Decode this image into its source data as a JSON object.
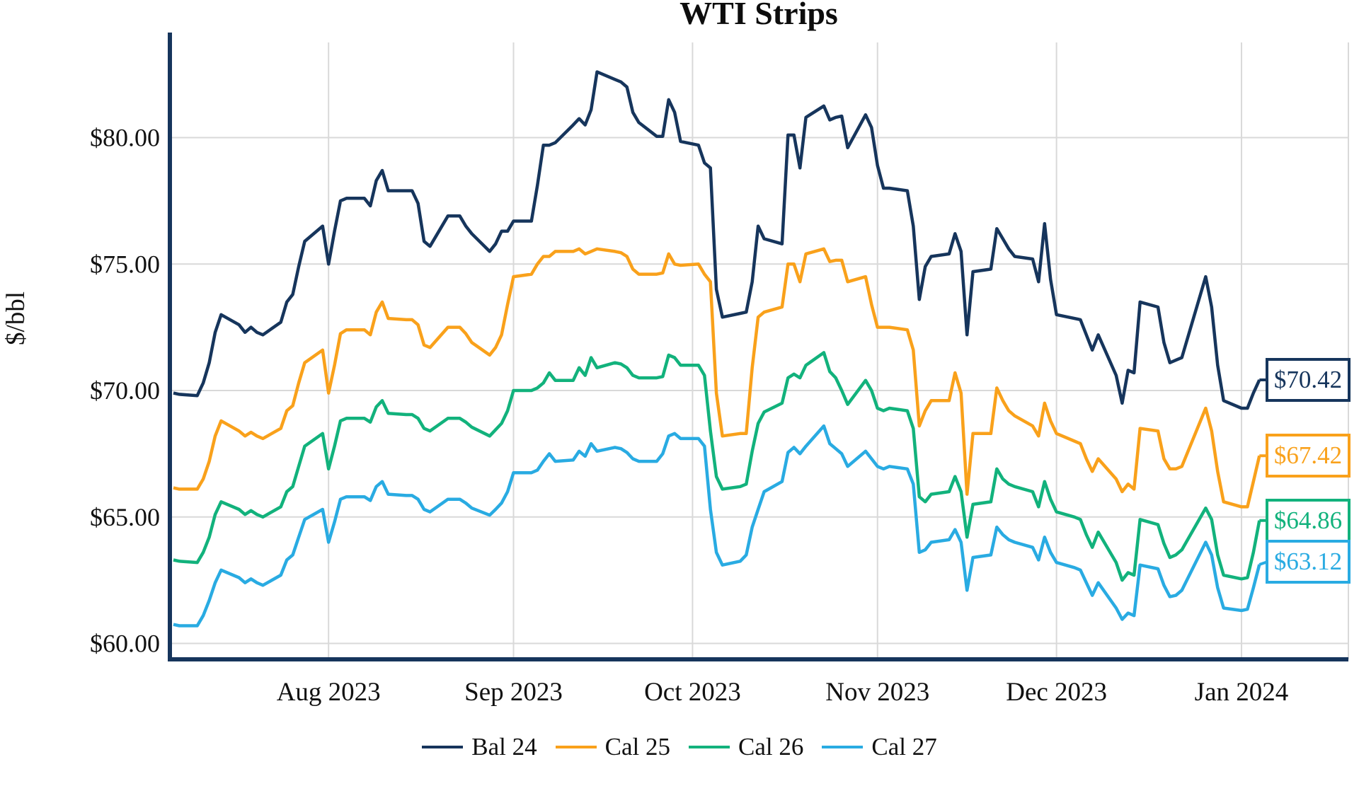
{
  "title": "WTI Strips",
  "colors": {
    "navy": "#16355C",
    "orange": "#F9A11B",
    "green": "#12B27C",
    "cyan": "#29ABE2",
    "axis_spine": "#16355C",
    "gridline": "#D9D9D9",
    "title_text": "#0D0D0D",
    "tick_text": "#111111"
  },
  "y_axis": {
    "label": "$/bbl",
    "ticks": [
      {
        "label": "$60.00",
        "value": 60
      },
      {
        "label": "$65.00",
        "value": 65
      },
      {
        "label": "$70.00",
        "value": 70
      },
      {
        "label": "$75.00",
        "value": 75
      },
      {
        "label": "$80.00",
        "value": 80
      }
    ]
  },
  "x_axis": {
    "ticks": [
      {
        "label": "Aug 2023",
        "date": "2023-08-01"
      },
      {
        "label": "Sep 2023",
        "date": "2023-09-01"
      },
      {
        "label": "Oct 2023",
        "date": "2023-10-01"
      },
      {
        "label": "Nov 2023",
        "date": "2023-11-01"
      },
      {
        "label": "Dec 2023",
        "date": "2023-12-01"
      },
      {
        "label": "Jan 2024",
        "date": "2024-01-01"
      }
    ]
  },
  "legend": [
    {
      "label": "Bal 24",
      "color_key": "navy"
    },
    {
      "label": "Cal 25",
      "color_key": "orange"
    },
    {
      "label": "Cal 26",
      "color_key": "green"
    },
    {
      "label": "Cal 27",
      "color_key": "cyan"
    }
  ],
  "end_labels": [
    {
      "text": "$70.42",
      "value": 70.42,
      "color_key": "navy"
    },
    {
      "text": "$67.42",
      "value": 67.42,
      "color_key": "orange"
    },
    {
      "text": "$64.86",
      "value": 64.86,
      "color_key": "green"
    },
    {
      "text": "$63.12",
      "value": 63.12,
      "color_key": "cyan"
    }
  ],
  "chart_data": {
    "type": "line",
    "title": "WTI Strips",
    "ylabel": "$/bbl",
    "ylim": [
      59.4,
      83.7
    ],
    "grid": true,
    "legend_position": "bottom",
    "x": [
      "2023-07-06",
      "2023-07-07",
      "2023-07-10",
      "2023-07-11",
      "2023-07-12",
      "2023-07-13",
      "2023-07-14",
      "2023-07-17",
      "2023-07-18",
      "2023-07-19",
      "2023-07-20",
      "2023-07-21",
      "2023-07-24",
      "2023-07-25",
      "2023-07-26",
      "2023-07-27",
      "2023-07-28",
      "2023-07-31",
      "2023-08-01",
      "2023-08-02",
      "2023-08-03",
      "2023-08-04",
      "2023-08-07",
      "2023-08-08",
      "2023-08-09",
      "2023-08-10",
      "2023-08-11",
      "2023-08-14",
      "2023-08-15",
      "2023-08-16",
      "2023-08-17",
      "2023-08-18",
      "2023-08-21",
      "2023-08-22",
      "2023-08-23",
      "2023-08-24",
      "2023-08-25",
      "2023-08-28",
      "2023-08-29",
      "2023-08-30",
      "2023-08-31",
      "2023-09-01",
      "2023-09-04",
      "2023-09-05",
      "2023-09-06",
      "2023-09-07",
      "2023-09-08",
      "2023-09-11",
      "2023-09-12",
      "2023-09-13",
      "2023-09-14",
      "2023-09-15",
      "2023-09-18",
      "2023-09-19",
      "2023-09-20",
      "2023-09-21",
      "2023-09-22",
      "2023-09-25",
      "2023-09-26",
      "2023-09-27",
      "2023-09-28",
      "2023-09-29",
      "2023-10-02",
      "2023-10-03",
      "2023-10-04",
      "2023-10-05",
      "2023-10-06",
      "2023-10-09",
      "2023-10-10",
      "2023-10-11",
      "2023-10-12",
      "2023-10-13",
      "2023-10-16",
      "2023-10-17",
      "2023-10-18",
      "2023-10-19",
      "2023-10-20",
      "2023-10-23",
      "2023-10-24",
      "2023-10-25",
      "2023-10-26",
      "2023-10-27",
      "2023-10-30",
      "2023-10-31",
      "2023-11-01",
      "2023-11-02",
      "2023-11-03",
      "2023-11-06",
      "2023-11-07",
      "2023-11-08",
      "2023-11-09",
      "2023-11-10",
      "2023-11-13",
      "2023-11-14",
      "2023-11-15",
      "2023-11-16",
      "2023-11-17",
      "2023-11-20",
      "2023-11-21",
      "2023-11-22",
      "2023-11-23",
      "2023-11-24",
      "2023-11-27",
      "2023-11-28",
      "2023-11-29",
      "2023-11-30",
      "2023-12-01",
      "2023-12-04",
      "2023-12-05",
      "2023-12-06",
      "2023-12-07",
      "2023-12-08",
      "2023-12-11",
      "2023-12-12",
      "2023-12-13",
      "2023-12-14",
      "2023-12-15",
      "2023-12-18",
      "2023-12-19",
      "2023-12-20",
      "2023-12-21",
      "2023-12-22",
      "2023-12-26",
      "2023-12-27",
      "2023-12-28",
      "2023-12-29",
      "2024-01-01",
      "2024-01-02",
      "2024-01-03",
      "2024-01-04"
    ],
    "series": [
      {
        "name": "Bal 24",
        "color_key": "navy",
        "values": [
          69.9,
          69.85,
          69.8,
          70.3,
          71.1,
          72.3,
          73.0,
          72.6,
          72.3,
          72.5,
          72.3,
          72.2,
          72.7,
          73.5,
          73.8,
          74.9,
          75.9,
          76.5,
          75.0,
          76.3,
          77.5,
          77.6,
          77.6,
          77.3,
          78.3,
          78.7,
          77.9,
          77.9,
          77.9,
          77.4,
          75.9,
          75.7,
          76.9,
          76.9,
          76.9,
          76.5,
          76.2,
          75.5,
          75.8,
          76.3,
          76.3,
          76.7,
          76.7,
          78.1,
          79.7,
          79.7,
          79.8,
          80.5,
          80.75,
          80.5,
          81.1,
          82.6,
          82.3,
          82.2,
          82.0,
          81.0,
          80.6,
          80.05,
          80.05,
          81.5,
          81.0,
          79.85,
          79.7,
          79.0,
          78.8,
          74.0,
          72.9,
          73.05,
          73.1,
          74.3,
          76.5,
          76.0,
          75.8,
          80.1,
          80.1,
          78.8,
          80.8,
          81.25,
          80.7,
          80.8,
          80.85,
          79.6,
          80.9,
          80.4,
          78.9,
          78.0,
          78.0,
          77.9,
          76.5,
          73.6,
          74.9,
          75.3,
          75.4,
          76.2,
          75.5,
          72.2,
          74.7,
          74.8,
          76.4,
          76.0,
          75.6,
          75.3,
          75.2,
          74.3,
          76.6,
          74.4,
          73.0,
          72.85,
          72.8,
          72.2,
          71.6,
          72.2,
          70.6,
          69.5,
          70.8,
          70.7,
          73.5,
          73.3,
          71.9,
          71.1,
          71.2,
          71.3,
          74.5,
          73.3,
          71.0,
          69.6,
          69.3,
          69.3,
          69.9,
          70.42
        ]
      },
      {
        "name": "Cal 25",
        "color_key": "orange",
        "values": [
          66.15,
          66.1,
          66.1,
          66.5,
          67.2,
          68.2,
          68.8,
          68.4,
          68.2,
          68.35,
          68.2,
          68.1,
          68.5,
          69.2,
          69.4,
          70.3,
          71.1,
          71.6,
          69.9,
          71.0,
          72.25,
          72.4,
          72.4,
          72.2,
          73.1,
          73.5,
          72.85,
          72.8,
          72.8,
          72.6,
          71.8,
          71.7,
          72.5,
          72.5,
          72.5,
          72.25,
          71.9,
          71.4,
          71.7,
          72.2,
          73.4,
          74.5,
          74.6,
          75.0,
          75.3,
          75.3,
          75.5,
          75.5,
          75.6,
          75.4,
          75.5,
          75.6,
          75.5,
          75.45,
          75.3,
          74.8,
          74.6,
          74.6,
          74.65,
          75.4,
          75.0,
          74.95,
          75.0,
          74.6,
          74.3,
          69.9,
          68.2,
          68.3,
          68.3,
          70.9,
          72.9,
          73.1,
          73.3,
          75.0,
          75.0,
          74.3,
          75.4,
          75.6,
          75.1,
          75.15,
          75.15,
          74.3,
          74.5,
          73.4,
          72.5,
          72.5,
          72.5,
          72.4,
          71.6,
          68.6,
          69.2,
          69.6,
          69.6,
          70.7,
          69.9,
          65.9,
          68.3,
          68.3,
          70.1,
          69.6,
          69.2,
          69.0,
          68.6,
          68.2,
          69.5,
          68.8,
          68.3,
          68.0,
          67.9,
          67.3,
          66.8,
          67.3,
          66.5,
          66.0,
          66.3,
          66.1,
          68.5,
          68.4,
          67.3,
          66.9,
          66.9,
          67.0,
          69.3,
          68.4,
          66.8,
          65.6,
          65.4,
          65.4,
          66.4,
          67.42
        ]
      },
      {
        "name": "Cal 26",
        "color_key": "green",
        "values": [
          63.3,
          63.25,
          63.2,
          63.6,
          64.2,
          65.1,
          65.6,
          65.3,
          65.1,
          65.25,
          65.1,
          65.0,
          65.4,
          66.0,
          66.2,
          67.0,
          67.8,
          68.3,
          66.9,
          67.8,
          68.8,
          68.9,
          68.9,
          68.75,
          69.35,
          69.6,
          69.1,
          69.05,
          69.05,
          68.9,
          68.5,
          68.4,
          68.9,
          68.9,
          68.9,
          68.75,
          68.55,
          68.2,
          68.45,
          68.7,
          69.2,
          70.0,
          70.0,
          70.1,
          70.3,
          70.7,
          70.4,
          70.4,
          70.9,
          70.6,
          71.3,
          70.9,
          71.1,
          71.05,
          70.9,
          70.6,
          70.5,
          70.5,
          70.55,
          71.4,
          71.3,
          71.0,
          71.0,
          70.6,
          68.4,
          66.6,
          66.1,
          66.2,
          66.3,
          67.6,
          68.7,
          69.15,
          69.5,
          70.5,
          70.65,
          70.5,
          71.0,
          71.5,
          70.75,
          70.5,
          70.0,
          69.45,
          70.4,
          70.0,
          69.3,
          69.2,
          69.3,
          69.2,
          68.5,
          65.8,
          65.6,
          65.9,
          66.0,
          66.6,
          66.0,
          64.2,
          65.5,
          65.6,
          66.9,
          66.5,
          66.3,
          66.2,
          66.0,
          65.4,
          66.4,
          65.7,
          65.2,
          65.0,
          64.9,
          64.3,
          63.8,
          64.4,
          63.2,
          62.5,
          62.8,
          62.7,
          64.9,
          64.7,
          63.95,
          63.4,
          63.5,
          63.7,
          65.35,
          64.9,
          63.5,
          62.7,
          62.55,
          62.6,
          63.6,
          64.86
        ]
      },
      {
        "name": "Cal 27",
        "color_key": "cyan",
        "values": [
          60.75,
          60.7,
          60.7,
          61.1,
          61.7,
          62.4,
          62.9,
          62.6,
          62.4,
          62.55,
          62.4,
          62.3,
          62.7,
          63.3,
          63.5,
          64.2,
          64.9,
          65.3,
          64.0,
          64.8,
          65.7,
          65.8,
          65.8,
          65.65,
          66.2,
          66.4,
          65.9,
          65.85,
          65.85,
          65.7,
          65.3,
          65.2,
          65.7,
          65.7,
          65.7,
          65.55,
          65.35,
          65.07,
          65.3,
          65.55,
          66.0,
          66.75,
          66.75,
          66.85,
          67.2,
          67.5,
          67.2,
          67.25,
          67.6,
          67.4,
          67.9,
          67.6,
          67.75,
          67.7,
          67.55,
          67.3,
          67.2,
          67.2,
          67.5,
          68.2,
          68.3,
          68.1,
          68.1,
          67.8,
          65.3,
          63.6,
          63.1,
          63.25,
          63.5,
          64.6,
          65.3,
          66.0,
          66.4,
          67.55,
          67.75,
          67.5,
          67.8,
          68.6,
          67.9,
          67.7,
          67.5,
          67.0,
          67.6,
          67.3,
          67.0,
          66.9,
          67.0,
          66.9,
          66.3,
          63.6,
          63.7,
          64.0,
          64.1,
          64.5,
          64.0,
          62.1,
          63.4,
          63.5,
          64.6,
          64.3,
          64.1,
          64.0,
          63.8,
          63.3,
          64.2,
          63.6,
          63.2,
          63.0,
          62.9,
          62.4,
          61.9,
          62.4,
          61.4,
          60.95,
          61.2,
          61.1,
          63.1,
          62.95,
          62.3,
          61.85,
          61.9,
          62.1,
          64.0,
          63.5,
          62.2,
          61.4,
          61.3,
          61.35,
          62.2,
          63.12
        ]
      }
    ]
  }
}
